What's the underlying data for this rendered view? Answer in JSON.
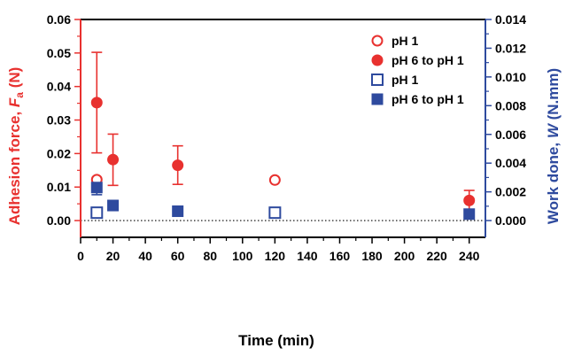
{
  "chart_data": {
    "type": "scatter",
    "xlabel": "Time (min)",
    "ylabel_left": {
      "main": "Adhesion force, ",
      "var": "F",
      "sub": "a",
      "unit": " (N)"
    },
    "ylabel_right": {
      "main": "Work done, ",
      "var": "W",
      "unit": " (N.mm)"
    },
    "xlim": [
      0,
      250
    ],
    "ylim_left": [
      -0.005,
      0.06
    ],
    "ylim_right": [
      -0.0011667,
      0.014
    ],
    "x_ticks": [
      0,
      20,
      40,
      60,
      80,
      100,
      120,
      140,
      160,
      180,
      200,
      220,
      240
    ],
    "y_ticks_left": [
      "0.00",
      "0.01",
      "0.02",
      "0.03",
      "0.04",
      "0.05",
      "0.06"
    ],
    "y_ticks_right": [
      "0.000",
      "0.002",
      "0.004",
      "0.006",
      "0.008",
      "0.010",
      "0.012",
      "0.014"
    ],
    "reference_line": {
      "y": 0,
      "style": "dotted"
    },
    "legend_position": "top-right",
    "colors": {
      "red": "#e8312f",
      "blue": "#2e4a9e"
    },
    "series": [
      {
        "name": "pH 1",
        "axis": "left",
        "marker": "circle-open",
        "color": "#e8312f",
        "points": [
          {
            "x": 10,
            "y": 0.0122
          },
          {
            "x": 120,
            "y": 0.0121
          }
        ]
      },
      {
        "name": "pH 6 to pH 1",
        "axis": "left",
        "marker": "circle-filled",
        "color": "#e8312f",
        "points": [
          {
            "x": 10,
            "y": 0.0352,
            "err": [
              0.0202,
              0.0502
            ]
          },
          {
            "x": 20,
            "y": 0.0182,
            "err": [
              0.0105,
              0.0258
            ]
          },
          {
            "x": 60,
            "y": 0.0165,
            "err": [
              0.0108,
              0.0223
            ]
          },
          {
            "x": 240,
            "y": 0.006,
            "err": [
              0.003,
              0.009
            ]
          }
        ]
      },
      {
        "name": "pH 1",
        "axis": "right",
        "marker": "square-open",
        "color": "#2e4a9e",
        "points": [
          {
            "x": 10,
            "y": 0.00055
          },
          {
            "x": 120,
            "y": 0.00055
          }
        ]
      },
      {
        "name": "pH 6 to pH 1",
        "axis": "right",
        "marker": "square-filled",
        "color": "#2e4a9e",
        "points": [
          {
            "x": 10,
            "y": 0.0023,
            "err": [
              0.0018,
              0.0028
            ]
          },
          {
            "x": 20,
            "y": 0.00105,
            "err": [
              0.0007,
              0.0014
            ]
          },
          {
            "x": 60,
            "y": 0.00065,
            "err": [
              0.0003,
              0.001
            ]
          },
          {
            "x": 240,
            "y": 0.00045,
            "err": [
              0.0002,
              0.0007
            ]
          }
        ]
      }
    ]
  }
}
